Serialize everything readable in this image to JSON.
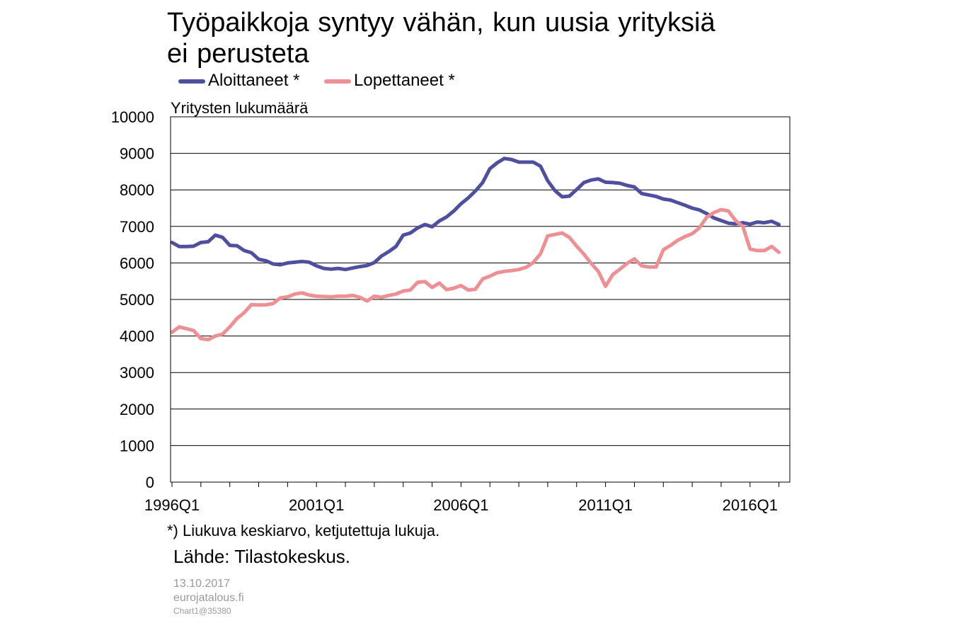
{
  "chart_data": {
    "type": "line",
    "title_lines": [
      "Työpaikkoja syntyy vähän, kun uusia yrityksiä",
      "ei perusteta"
    ],
    "ylabel": "Yritysten lukumäärä",
    "xlabel": "",
    "ylim": [
      0,
      10000
    ],
    "yticks": [
      0,
      1000,
      2000,
      3000,
      4000,
      5000,
      6000,
      7000,
      8000,
      9000,
      10000
    ],
    "x_start": "1996Q1",
    "x_labels": [
      "1996Q1",
      "2001Q1",
      "2006Q1",
      "2011Q1",
      "2016Q1"
    ],
    "grid": true,
    "legend_position": "top",
    "series": [
      {
        "name": "Aloittaneet *",
        "color": "#4e4f9e",
        "values": [
          6560,
          6450,
          6450,
          6460,
          6560,
          6580,
          6760,
          6700,
          6480,
          6470,
          6340,
          6280,
          6100,
          6060,
          5970,
          5950,
          6000,
          6020,
          6040,
          6020,
          5920,
          5850,
          5830,
          5850,
          5820,
          5860,
          5900,
          5930,
          6010,
          6190,
          6310,
          6450,
          6760,
          6820,
          6960,
          7050,
          6990,
          7150,
          7260,
          7420,
          7620,
          7780,
          7970,
          8200,
          8580,
          8740,
          8860,
          8830,
          8760,
          8760,
          8760,
          8650,
          8250,
          7980,
          7810,
          7830,
          8010,
          8200,
          8270,
          8300,
          8210,
          8200,
          8180,
          8120,
          8080,
          7900,
          7860,
          7820,
          7750,
          7720,
          7650,
          7580,
          7500,
          7450,
          7350,
          7230,
          7160,
          7090,
          7070,
          7100,
          7060,
          7120,
          7100,
          7140,
          7050
        ]
      },
      {
        "name": "Lopettaneet *",
        "color": "#ee8f93",
        "values": [
          4100,
          4250,
          4200,
          4150,
          3930,
          3900,
          4000,
          4050,
          4250,
          4480,
          4640,
          4860,
          4850,
          4850,
          4890,
          5040,
          5070,
          5150,
          5180,
          5120,
          5090,
          5080,
          5070,
          5090,
          5090,
          5110,
          5060,
          4960,
          5090,
          5060,
          5110,
          5150,
          5230,
          5260,
          5470,
          5490,
          5330,
          5450,
          5270,
          5310,
          5380,
          5260,
          5280,
          5560,
          5640,
          5730,
          5770,
          5790,
          5820,
          5880,
          6010,
          6250,
          6740,
          6780,
          6820,
          6700,
          6460,
          6240,
          5990,
          5770,
          5360,
          5680,
          5830,
          5990,
          6110,
          5920,
          5890,
          5890,
          6360,
          6480,
          6620,
          6720,
          6800,
          6960,
          7250,
          7380,
          7460,
          7420,
          7160,
          7000,
          6380,
          6340,
          6340,
          6450,
          6290
        ]
      }
    ],
    "footnote": "*) Liukuva keskiarvo, ketjutettuja lukuja.",
    "source": "Lähde: Tilastokeskus."
  },
  "meta": {
    "date": "13.10.2017",
    "site": "eurojatalous.fi",
    "chart_id": "Chart1@35380"
  }
}
